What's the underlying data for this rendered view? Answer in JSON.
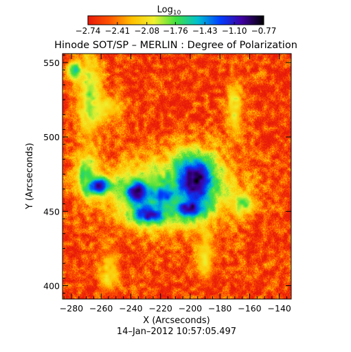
{
  "chart_data": {
    "type": "heatmap",
    "title": "Hinode SOT/SP – MERLIN : Degree of Polarization",
    "xlabel": "X (Arcseconds)",
    "ylabel": "Y (Arcseconds)",
    "timestamp": "14–Jan–2012 10:57:05.497",
    "xlim": [
      -286,
      -132
    ],
    "ylim": [
      391,
      556
    ],
    "x_ticks": [
      -280,
      -260,
      -240,
      -220,
      -200,
      -180,
      -160,
      -140
    ],
    "x_tick_labels": [
      "−280",
      "−260",
      "−240",
      "−220",
      "−200",
      "−180",
      "−160",
      "−140"
    ],
    "y_ticks": [
      400,
      450,
      500,
      550
    ],
    "y_tick_labels": [
      "400",
      "450",
      "500",
      "550"
    ],
    "colorbar": {
      "label": "Log",
      "label_subscript": "10",
      "range": [
        -2.74,
        -0.77
      ],
      "tick_values": [
        -2.74,
        -2.41,
        -2.08,
        -1.76,
        -1.43,
        -1.1,
        -0.77
      ],
      "tick_labels": [
        "−2.74",
        "−2.41",
        "−2.08",
        "−1.76",
        "−1.43",
        "−1.10",
        "−0.77"
      ],
      "colors": [
        "#e81a0a",
        "#ff5500",
        "#ffc000",
        "#f0f030",
        "#40e040",
        "#00c0d0",
        "#0040ff",
        "#4000a0",
        "#000000"
      ]
    },
    "features": [
      {
        "name": "polarization-region-core",
        "x": -197,
        "y": 471,
        "sx": 11,
        "sy": 13,
        "level": -0.8
      },
      {
        "name": "polarization-region-west",
        "x": -235,
        "y": 463,
        "sx": 8,
        "sy": 7,
        "level": -0.85
      },
      {
        "name": "polarization-region-far-west",
        "x": -262,
        "y": 467,
        "sx": 7,
        "sy": 5,
        "level": -1.0
      },
      {
        "name": "polarization-region-south",
        "x": -228,
        "y": 448,
        "sx": 9,
        "sy": 5,
        "level": -1.0
      },
      {
        "name": "polarization-region-southeast",
        "x": -200,
        "y": 452,
        "sx": 8,
        "sy": 5,
        "level": -0.95
      },
      {
        "name": "polarization-region-center",
        "x": -218,
        "y": 461,
        "sx": 7,
        "sy": 7,
        "level": -1.3
      },
      {
        "name": "halo-large",
        "x": -215,
        "y": 462,
        "sx": 30,
        "sy": 17,
        "level": -1.7
      },
      {
        "name": "filament-top-left",
        "x": -268,
        "y": 528,
        "sx": 6,
        "sy": 22,
        "level": -1.9
      },
      {
        "name": "filament-left-top",
        "x": -278,
        "y": 545,
        "sx": 3,
        "sy": 5,
        "level": -1.6
      },
      {
        "name": "filament-top",
        "x": -258,
        "y": 520,
        "sx": 10,
        "sy": 5,
        "level": -2.0
      },
      {
        "name": "filament-upper-right",
        "x": -170,
        "y": 520,
        "sx": 4,
        "sy": 14,
        "level": -2.0
      },
      {
        "name": "filament-right",
        "x": -165,
        "y": 455,
        "sx": 5,
        "sy": 5,
        "level": -1.8
      },
      {
        "name": "filament-bottom-center",
        "x": -190,
        "y": 420,
        "sx": 4,
        "sy": 12,
        "level": -2.1
      },
      {
        "name": "filament-bottom-left",
        "x": -255,
        "y": 410,
        "sx": 5,
        "sy": 10,
        "level": -2.1
      },
      {
        "name": "filament-left",
        "x": -270,
        "y": 475,
        "sx": 5,
        "sy": 10,
        "level": -1.7
      }
    ]
  }
}
